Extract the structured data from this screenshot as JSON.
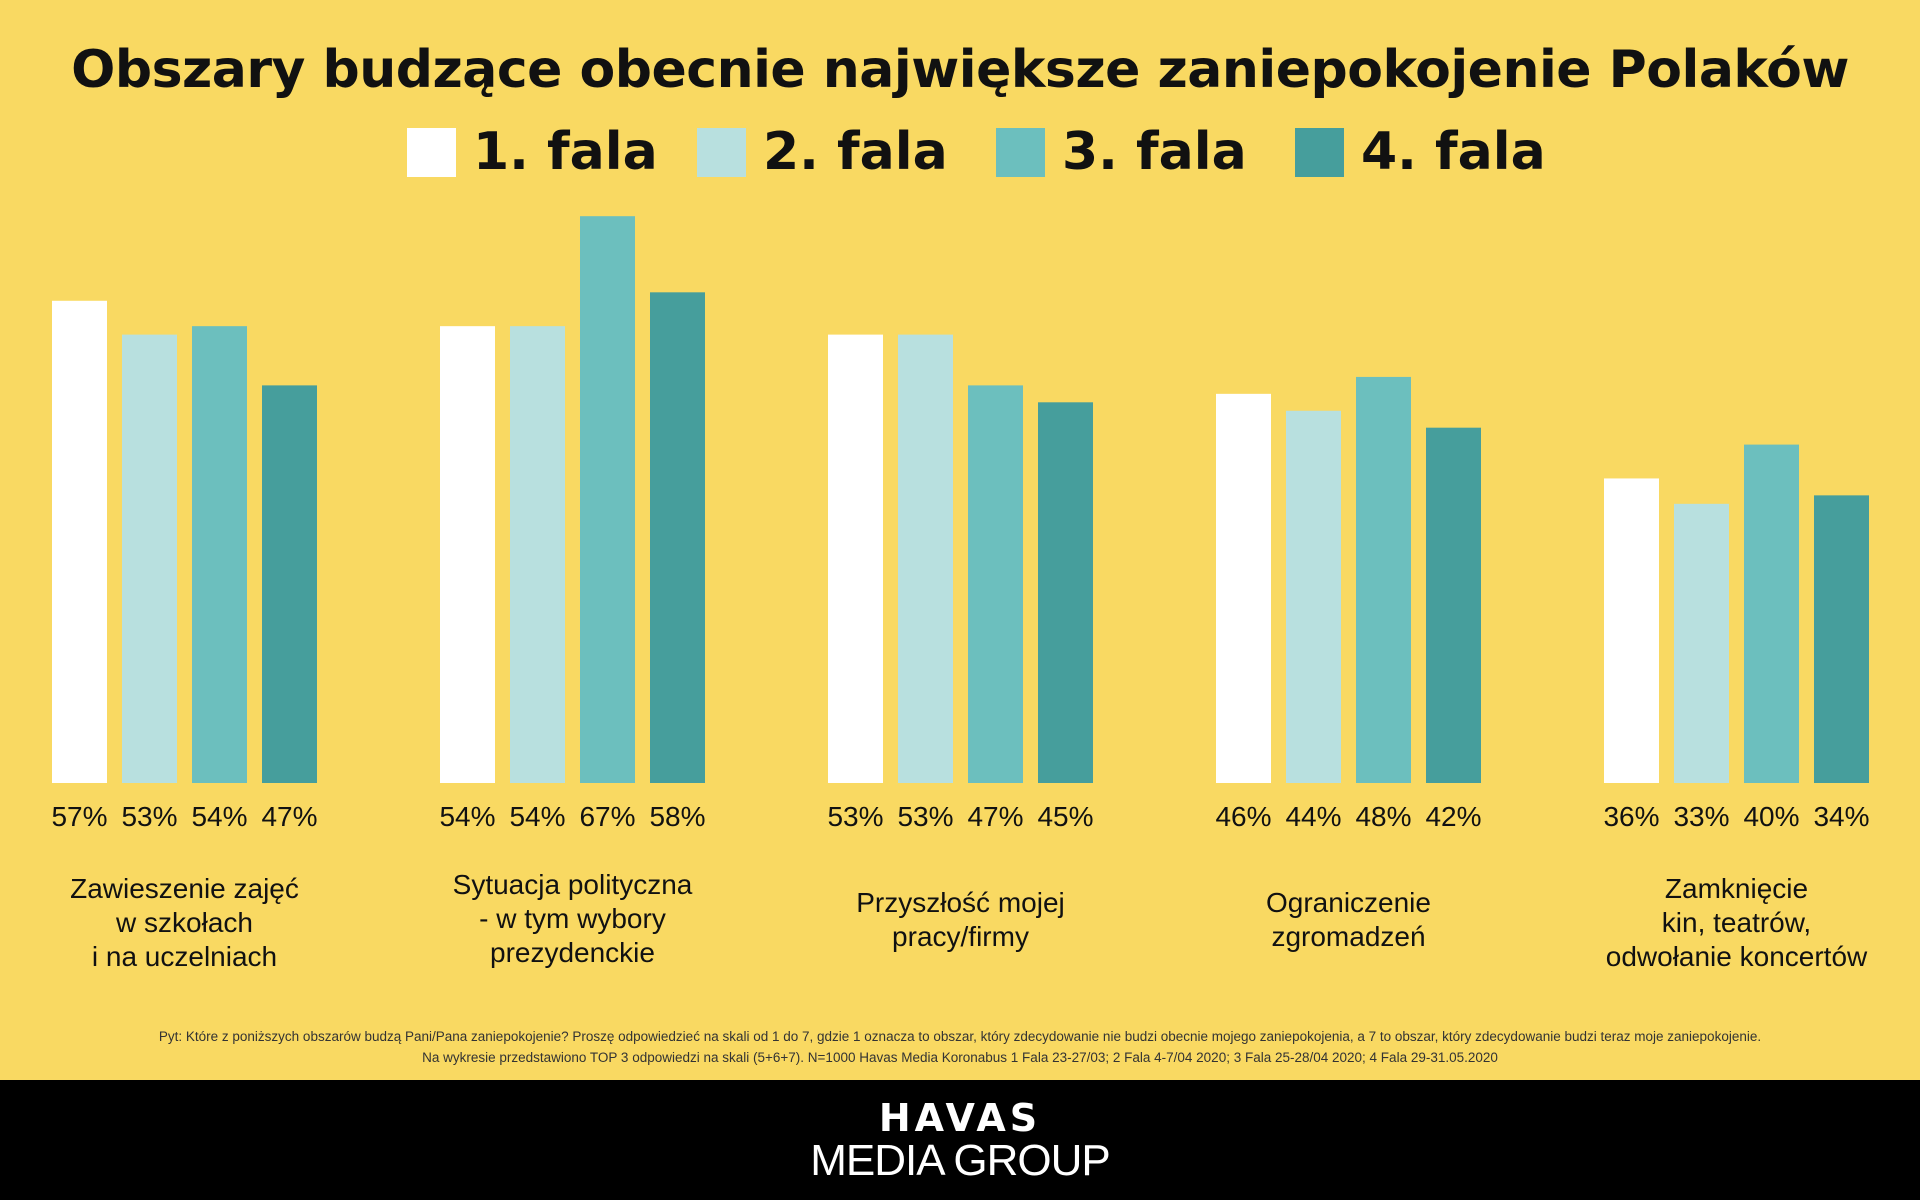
{
  "chart_data": {
    "type": "bar",
    "title": "Obszary budzące obecnie największe zaniepokojenie Polaków",
    "categories": [
      "Zawieszenie zajęć\nw szkołach\ni na uczelniach",
      "Sytuacja polityczna\n- w tym wybory\nprezydenckie",
      "Przyszłość mojej\npracy/firmy",
      "Ograniczenie\nzgromadzeń",
      "Zamknięcie\nkin, teatrów,\nodwołanie koncertów"
    ],
    "series": [
      {
        "name": "1. fala",
        "color": "#FFFFFF",
        "values": [
          57,
          54,
          53,
          46,
          36
        ]
      },
      {
        "name": "2. fala",
        "color": "#B8E0DF",
        "values": [
          53,
          54,
          53,
          44,
          33
        ]
      },
      {
        "name": "3. fala",
        "color": "#6CBFBE",
        "values": [
          54,
          67,
          47,
          48,
          40
        ]
      },
      {
        "name": "4. fala",
        "color": "#469E9C",
        "values": [
          47,
          58,
          45,
          42,
          34
        ]
      }
    ],
    "value_suffix": "%",
    "ylim": [
      0,
      67
    ],
    "legend_position": "top",
    "grid": false
  },
  "footnote": [
    "Pyt: Które z poniższych obszarów budzą Pani/Pana zaniepokojenie? Proszę odpowiedzieć na skali od 1 do 7, gdzie 1 oznacza to obszar, który zdecydowanie nie budzi obecnie mojego zaniepokojenia, a 7 to obszar, który zdecydowanie budzi teraz moje zaniepokojenie.",
    "Na wykresie przedstawiono TOP 3 odpowiedzi na skali (5+6+7). N=1000 Havas Media Koronabus 1 Fala 23-27/03; 2 Fala 4-7/04 2020; 3 Fala 25-28/04 2020; 4 Fala 29-31.05.2020"
  ],
  "logo": {
    "line1": "HAVAS",
    "line2": "MEDIA GROUP"
  },
  "colors": {
    "background": "#F9D962",
    "footer": "#000000"
  }
}
